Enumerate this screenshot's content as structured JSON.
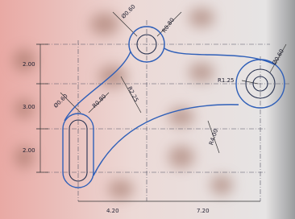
{
  "drawing": {
    "dimensions": [
      "Ø0.60",
      "R0.80",
      "2.00",
      "3.00",
      "2.00",
      "Ø0.60",
      "R0.80",
      "R2.25",
      "R1.25",
      "Ø0.60",
      "R4.00",
      "4.20",
      "7.20"
    ]
  }
}
